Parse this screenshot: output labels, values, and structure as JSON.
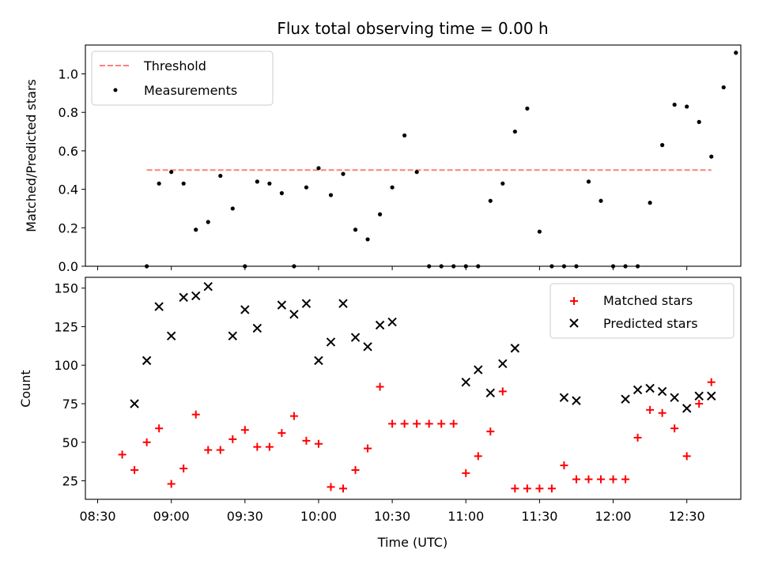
{
  "chart_data": [
    {
      "type": "scatter",
      "title": "Flux total observing time = 0.00 h",
      "xlabel": "",
      "ylabel": "Matched/Predicted stars",
      "xlim": [
        "08:25",
        "12:52"
      ],
      "ylim": [
        0,
        1.15
      ],
      "y_ticks": [
        "0.0",
        "0.2",
        "0.4",
        "0.6",
        "0.8",
        "1.0"
      ],
      "grid": false,
      "legend_position": "upper-left",
      "threshold": {
        "name": "Threshold",
        "y": 0.5,
        "x_start": "08:50",
        "x_end": "12:40",
        "color": "#ff7f7f"
      },
      "series": [
        {
          "name": "Measurements",
          "color": "#000000",
          "marker": "dot",
          "points": [
            [
              "08:50",
              0.0
            ],
            [
              "08:55",
              0.43
            ],
            [
              "09:00",
              0.49
            ],
            [
              "09:05",
              0.43
            ],
            [
              "09:10",
              0.19
            ],
            [
              "09:15",
              0.23
            ],
            [
              "09:20",
              0.47
            ],
            [
              "09:25",
              0.3
            ],
            [
              "09:30",
              0.0
            ],
            [
              "09:35",
              0.44
            ],
            [
              "09:40",
              0.43
            ],
            [
              "09:45",
              0.38
            ],
            [
              "09:50",
              0.0
            ],
            [
              "09:55",
              0.41
            ],
            [
              "10:00",
              0.51
            ],
            [
              "10:05",
              0.37
            ],
            [
              "10:10",
              0.48
            ],
            [
              "10:15",
              0.19
            ],
            [
              "10:20",
              0.14
            ],
            [
              "10:25",
              0.27
            ],
            [
              "10:30",
              0.41
            ],
            [
              "10:35",
              0.68
            ],
            [
              "10:40",
              0.49
            ],
            [
              "10:45",
              0.0
            ],
            [
              "10:50",
              0.0
            ],
            [
              "10:55",
              0.0
            ],
            [
              "11:00",
              0.0
            ],
            [
              "11:05",
              0.0
            ],
            [
              "11:10",
              0.34
            ],
            [
              "11:15",
              0.43
            ],
            [
              "11:20",
              0.7
            ],
            [
              "11:25",
              0.82
            ],
            [
              "11:30",
              0.18
            ],
            [
              "11:35",
              0.0
            ],
            [
              "11:40",
              0.0
            ],
            [
              "11:45",
              0.0
            ],
            [
              "11:50",
              0.44
            ],
            [
              "11:55",
              0.34
            ],
            [
              "12:00",
              0.0
            ],
            [
              "12:05",
              0.0
            ],
            [
              "12:10",
              0.0
            ],
            [
              "12:15",
              0.33
            ],
            [
              "12:20",
              0.63
            ],
            [
              "12:25",
              0.84
            ],
            [
              "12:30",
              0.83
            ],
            [
              "12:35",
              0.75
            ],
            [
              "12:40",
              0.57
            ],
            [
              "12:45",
              0.93
            ],
            [
              "12:50",
              1.11
            ]
          ]
        }
      ]
    },
    {
      "type": "scatter",
      "title": "",
      "xlabel": "Time (UTC)",
      "ylabel": "Count",
      "xlim": [
        "08:25",
        "12:52"
      ],
      "ylim": [
        13,
        157
      ],
      "x_ticks": [
        "08:30",
        "09:00",
        "09:30",
        "10:00",
        "10:30",
        "11:00",
        "11:30",
        "12:00",
        "12:30"
      ],
      "y_ticks": [
        "25",
        "50",
        "75",
        "100",
        "125",
        "150"
      ],
      "grid": false,
      "legend_position": "upper-right",
      "series": [
        {
          "name": "Matched stars",
          "color": "#ff0000",
          "marker": "plus",
          "points": [
            [
              "08:40",
              42
            ],
            [
              "08:45",
              32
            ],
            [
              "08:50",
              50
            ],
            [
              "08:55",
              59
            ],
            [
              "09:00",
              23
            ],
            [
              "09:05",
              33
            ],
            [
              "09:10",
              68
            ],
            [
              "09:15",
              45
            ],
            [
              "09:20",
              45
            ],
            [
              "09:25",
              52
            ],
            [
              "09:30",
              58
            ],
            [
              "09:35",
              47
            ],
            [
              "09:40",
              47
            ],
            [
              "09:45",
              56
            ],
            [
              "09:50",
              67
            ],
            [
              "09:55",
              51
            ],
            [
              "10:00",
              49
            ],
            [
              "10:05",
              21
            ],
            [
              "10:10",
              20
            ],
            [
              "10:15",
              32
            ],
            [
              "10:20",
              46
            ],
            [
              "10:25",
              86
            ],
            [
              "10:30",
              62
            ],
            [
              "10:35",
              62
            ],
            [
              "10:40",
              62
            ],
            [
              "10:45",
              62
            ],
            [
              "10:50",
              62
            ],
            [
              "10:55",
              62
            ],
            [
              "11:00",
              30
            ],
            [
              "11:05",
              41
            ],
            [
              "11:10",
              57
            ],
            [
              "11:15",
              83
            ],
            [
              "11:20",
              20
            ],
            [
              "11:25",
              20
            ],
            [
              "11:30",
              20
            ],
            [
              "11:35",
              20
            ],
            [
              "11:40",
              35
            ],
            [
              "11:45",
              26
            ],
            [
              "11:50",
              26
            ],
            [
              "11:55",
              26
            ],
            [
              "12:00",
              26
            ],
            [
              "12:05",
              26
            ],
            [
              "12:10",
              53
            ],
            [
              "12:15",
              71
            ],
            [
              "12:20",
              69
            ],
            [
              "12:25",
              59
            ],
            [
              "12:30",
              41
            ],
            [
              "12:35",
              75
            ],
            [
              "12:40",
              89
            ]
          ]
        },
        {
          "name": "Predicted stars",
          "color": "#000000",
          "marker": "x",
          "points": [
            [
              "08:45",
              75
            ],
            [
              "08:50",
              103
            ],
            [
              "08:55",
              138
            ],
            [
              "09:00",
              119
            ],
            [
              "09:05",
              144
            ],
            [
              "09:10",
              145
            ],
            [
              "09:15",
              151
            ],
            [
              "09:25",
              119
            ],
            [
              "09:30",
              136
            ],
            [
              "09:35",
              124
            ],
            [
              "09:45",
              139
            ],
            [
              "09:50",
              133
            ],
            [
              "09:55",
              140
            ],
            [
              "10:00",
              103
            ],
            [
              "10:05",
              115
            ],
            [
              "10:10",
              140
            ],
            [
              "10:15",
              118
            ],
            [
              "10:20",
              112
            ],
            [
              "10:25",
              126
            ],
            [
              "10:30",
              128
            ],
            [
              "11:00",
              89
            ],
            [
              "11:05",
              97
            ],
            [
              "11:10",
              82
            ],
            [
              "11:15",
              101
            ],
            [
              "11:20",
              111
            ],
            [
              "11:40",
              79
            ],
            [
              "11:45",
              77
            ],
            [
              "12:05",
              78
            ],
            [
              "12:10",
              84
            ],
            [
              "12:15",
              85
            ],
            [
              "12:20",
              83
            ],
            [
              "12:25",
              79
            ],
            [
              "12:30",
              72
            ],
            [
              "12:35",
              80
            ],
            [
              "12:40",
              80
            ]
          ]
        }
      ]
    }
  ]
}
